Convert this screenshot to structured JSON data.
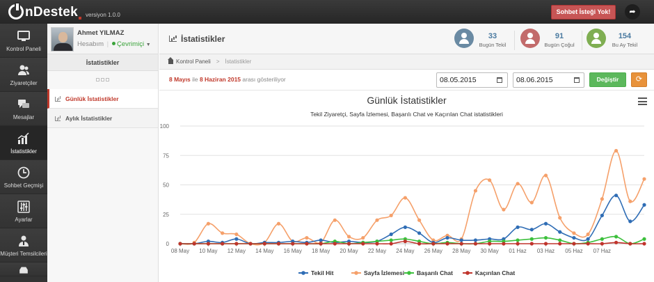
{
  "app": {
    "logo_text": "nDestek",
    "version": "versiyon 1.0.0",
    "chat_request_button": "Sohbet İsteği Yok!",
    "share_icon": "share-arrow-icon"
  },
  "sidebar": {
    "items": [
      {
        "label": "Kontrol Paneli",
        "icon": "monitor-icon"
      },
      {
        "label": "Ziyaretçiler",
        "icon": "users-icon"
      },
      {
        "label": "Mesajlar",
        "icon": "chat-bubbles-icon"
      },
      {
        "label": "İstatistikler",
        "icon": "bar-chart-icon",
        "active": true
      },
      {
        "label": "Sohbet Geçmişi",
        "icon": "clock-icon"
      },
      {
        "label": "Ayarlar",
        "icon": "sliders-icon"
      },
      {
        "label": "Müşteri Temsilcileri",
        "icon": "agent-icon"
      }
    ]
  },
  "user": {
    "name": "Ahmet YILMAZ",
    "account_link": "Hesabım",
    "separator": "|",
    "status": "Çevrimiçi"
  },
  "subnav": {
    "title": "İstatistikler",
    "items": [
      {
        "label": "Günlük İstatistikler",
        "active": true
      },
      {
        "label": "Aylık İstatistikler",
        "active": false
      }
    ]
  },
  "header": {
    "title": "İstatistikler",
    "stats": [
      {
        "value": "33",
        "label": "Bugün Tekil",
        "color": "#6a8aa3"
      },
      {
        "value": "91",
        "label": "Bugün Çoğul",
        "color": "#c26b6b"
      },
      {
        "value": "154",
        "label": "Bu Ay Tekil",
        "color": "#7fae52"
      }
    ]
  },
  "breadcrumb": {
    "home": "Kontrol Paneli",
    "separator": ">",
    "current": "İstatistikler"
  },
  "filter": {
    "start_label": "8 Mayıs",
    "middle": " ile ",
    "end_label": "8 Haziran 2015",
    "suffix": " arası gösteriliyor",
    "start_date": "08.05.2015",
    "end_date": "08.06.2015",
    "apply_button": "Değiştir",
    "refresh_icon": "refresh-icon"
  },
  "chart_data": {
    "type": "line",
    "title": "Günlük İstatistikler",
    "subtitle": "Tekil Ziyaretçi, Sayfa İzlemesi, Başarılı Chat ve Kaçırılan Chat istatistikleri",
    "ylim": [
      0,
      100
    ],
    "yticks": [
      0,
      25,
      50,
      75,
      100
    ],
    "x_tick_labels": [
      "08 May",
      "10 May",
      "12 May",
      "14 May",
      "16 May",
      "18 May",
      "20 May",
      "22 May",
      "24 May",
      "26 May",
      "28 May",
      "30 May",
      "01 Haz",
      "03 Haz",
      "05 Haz",
      "07 Haz"
    ],
    "legend_position": "bottom",
    "grid": true,
    "series": [
      {
        "name": "Tekil Hit",
        "color": "#2f6db5",
        "values": [
          0,
          0,
          2,
          1,
          4,
          0,
          1,
          1,
          2,
          1,
          3,
          1,
          2,
          1,
          2,
          8,
          14,
          9,
          1,
          5,
          3,
          3,
          4,
          4,
          14,
          12,
          17,
          10,
          5,
          4,
          24,
          41,
          19,
          33
        ]
      },
      {
        "name": "Sayfa İzlemesi",
        "color": "#f5a06a",
        "values": [
          0,
          1,
          17,
          9,
          8,
          0,
          1,
          17,
          2,
          5,
          1,
          20,
          6,
          5,
          20,
          24,
          39,
          20,
          3,
          7,
          4,
          45,
          54,
          29,
          51,
          35,
          58,
          22,
          9,
          8,
          38,
          79,
          36,
          55
        ]
      },
      {
        "name": "Başarılı Chat",
        "color": "#3cc03c",
        "values": [
          0,
          0,
          0,
          0,
          0,
          0,
          0,
          0,
          0,
          0,
          0,
          2,
          0,
          1,
          2,
          3,
          4,
          2,
          0,
          1,
          0,
          0,
          2,
          2,
          3,
          4,
          5,
          3,
          0,
          1,
          4,
          6,
          0,
          4
        ]
      },
      {
        "name": "Kaçırılan Chat",
        "color": "#c0342c",
        "values": [
          0,
          0,
          0,
          0,
          0,
          0,
          0,
          0,
          0,
          0,
          0,
          0,
          0,
          0,
          0,
          0,
          2,
          0,
          0,
          0,
          0,
          0,
          0,
          0,
          0,
          0,
          0,
          0,
          0,
          0,
          0,
          1,
          0,
          0
        ]
      }
    ]
  }
}
